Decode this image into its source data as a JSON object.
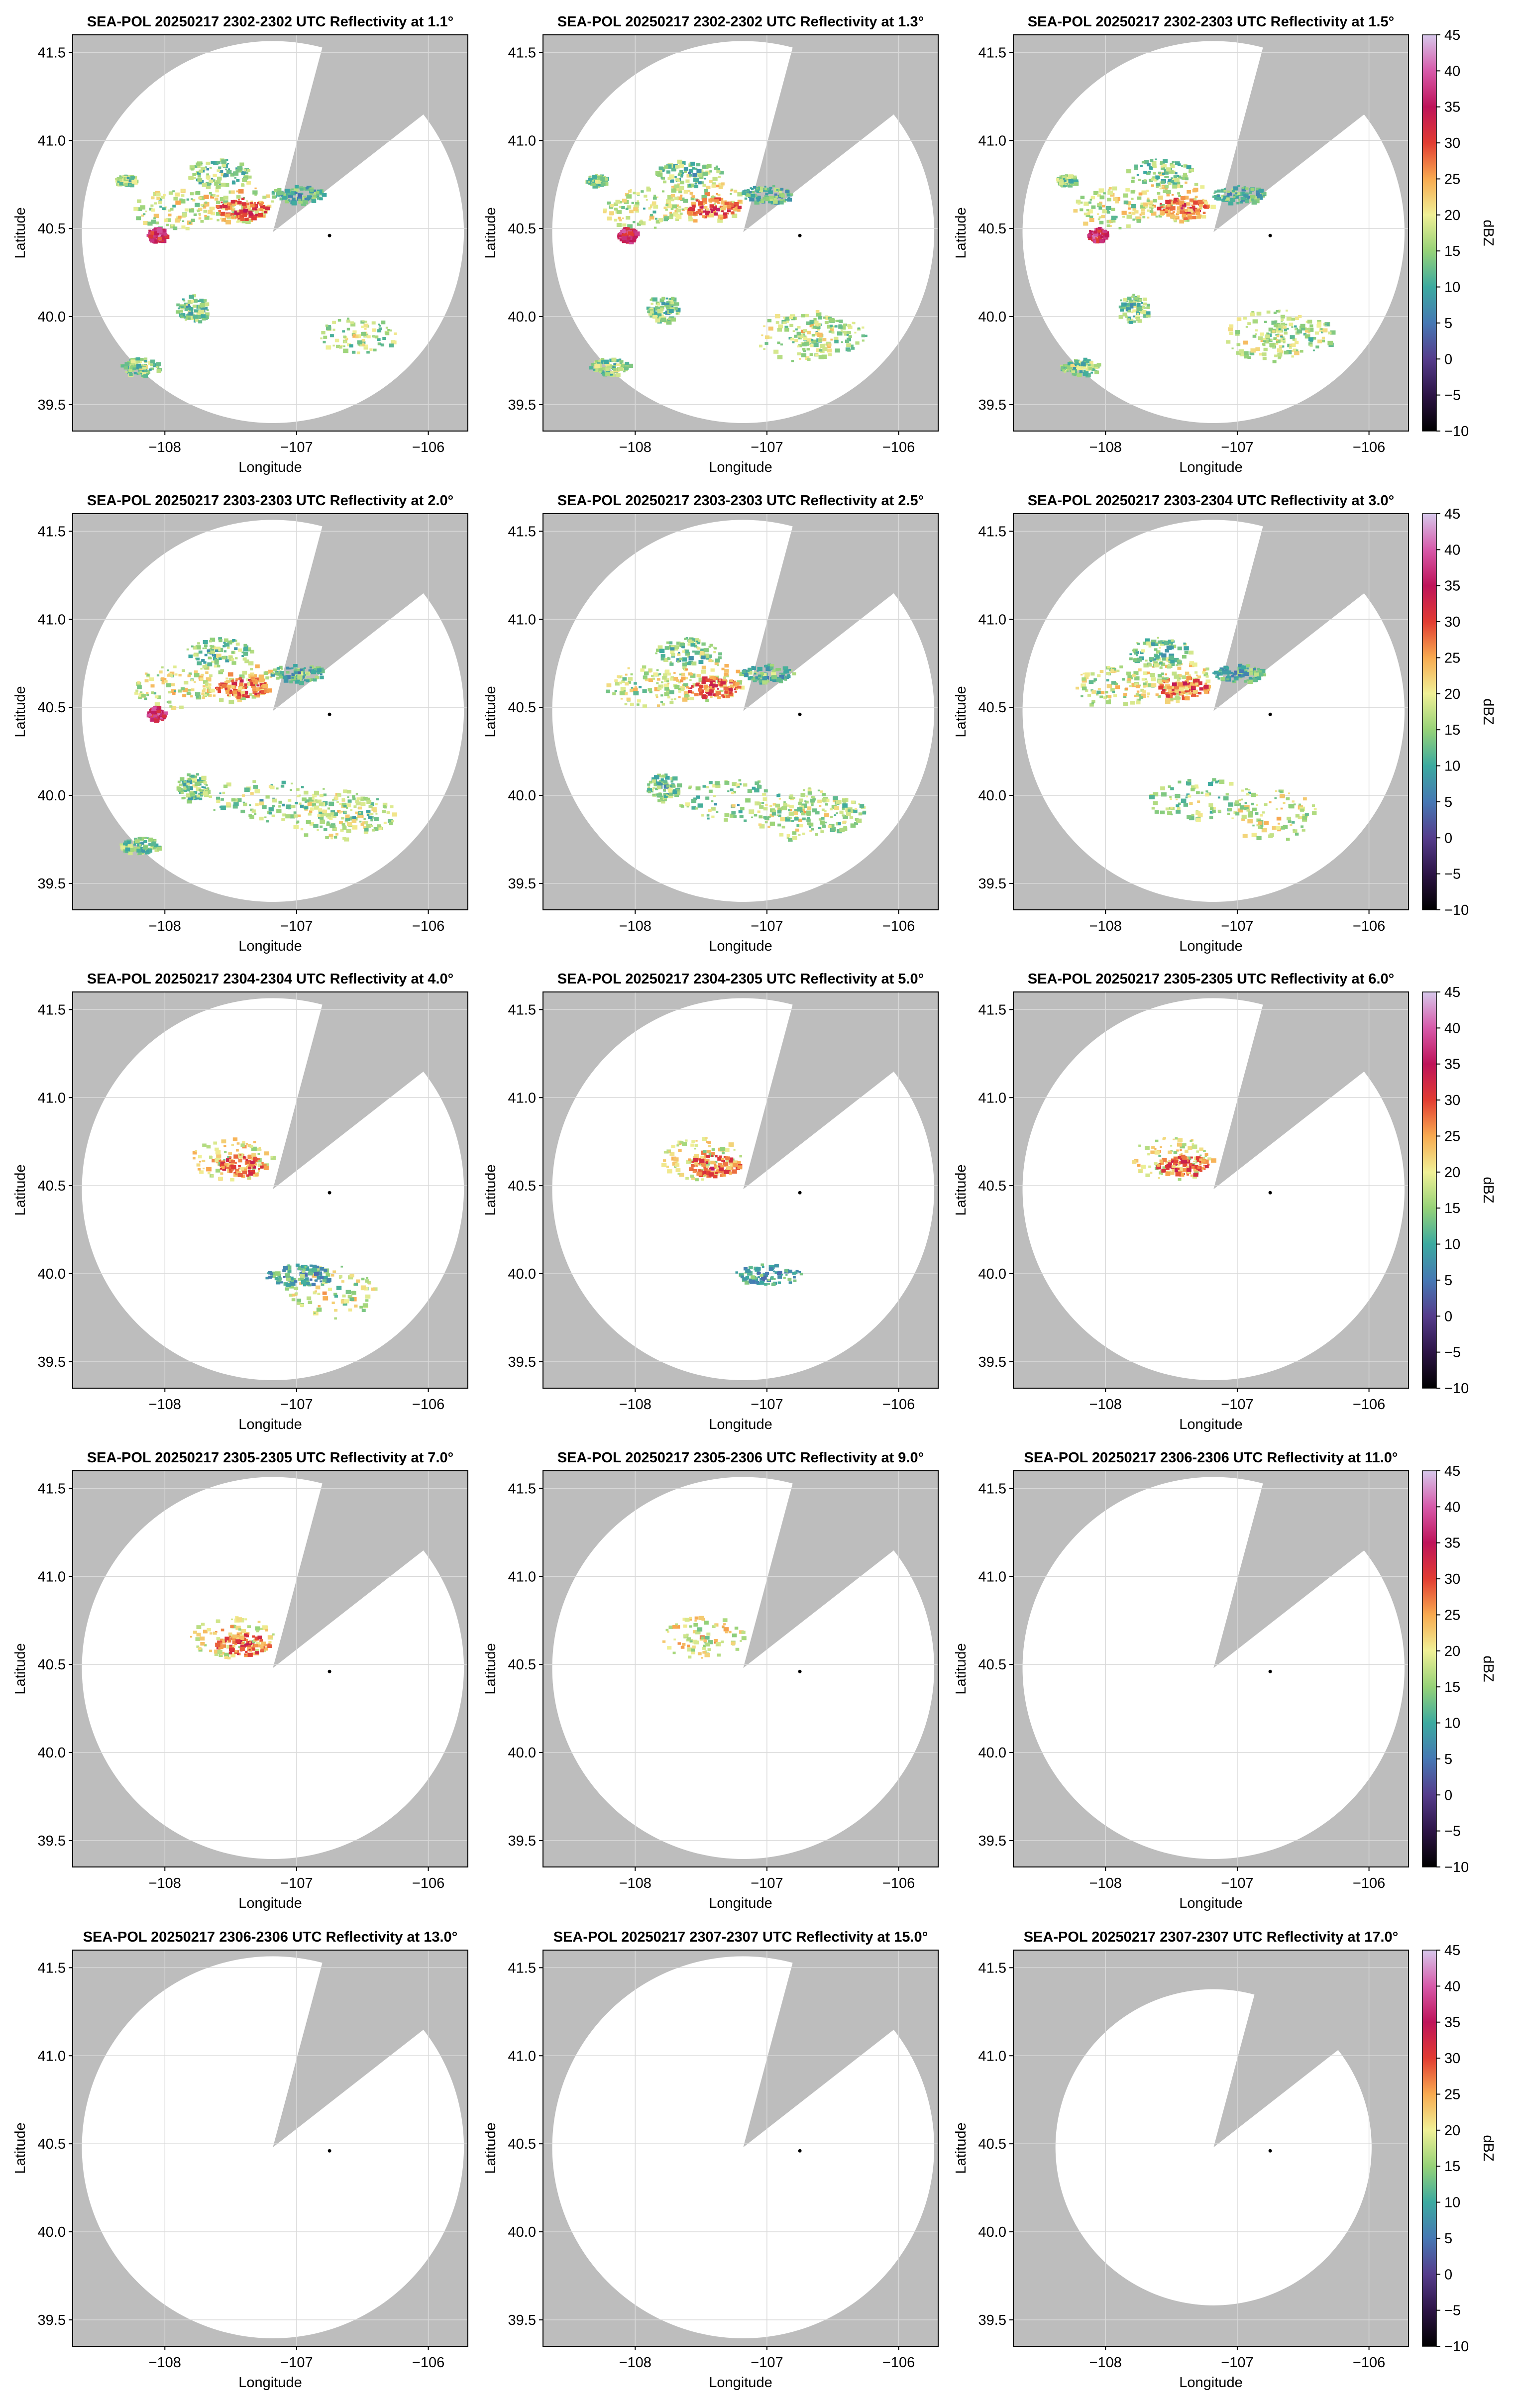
{
  "figure": {
    "xlabel": "Longitude",
    "ylabel": "Latitude",
    "xticks": [
      "−108",
      "−107",
      "−106"
    ],
    "yticks": [
      "39.5",
      "40.0",
      "40.5",
      "41.0",
      "41.5"
    ],
    "colorbar": {
      "label": "dBZ",
      "ticks": [
        "−10",
        "−5",
        "0",
        "5",
        "10",
        "15",
        "20",
        "25",
        "30",
        "35",
        "40",
        "45"
      ],
      "range": [
        -10,
        45
      ],
      "colormap": "Spectral-like (black → purple → blue → teal → green → yellow → orange → red → magenta → light purple)"
    },
    "background_color": "#bdbdbd",
    "radar_marker_color": "#000000"
  },
  "panels": [
    {
      "title": "SEA-POL 20250217 2302-2302 UTC Reflectivity at 1.1°"
    },
    {
      "title": "SEA-POL 20250217 2302-2302 UTC Reflectivity at 1.3°"
    },
    {
      "title": "SEA-POL 20250217 2302-2303 UTC Reflectivity at 1.5°"
    },
    {
      "title": "SEA-POL 20250217 2303-2303 UTC Reflectivity at 2.0°"
    },
    {
      "title": "SEA-POL 20250217 2303-2303 UTC Reflectivity at 2.5°"
    },
    {
      "title": "SEA-POL 20250217 2303-2304 UTC Reflectivity at 3.0°"
    },
    {
      "title": "SEA-POL 20250217 2304-2304 UTC Reflectivity at 4.0°"
    },
    {
      "title": "SEA-POL 20250217 2304-2305 UTC Reflectivity at 5.0°"
    },
    {
      "title": "SEA-POL 20250217 2305-2305 UTC Reflectivity at 6.0°"
    },
    {
      "title": "SEA-POL 20250217 2305-2305 UTC Reflectivity at 7.0°"
    },
    {
      "title": "SEA-POL 20250217 2305-2306 UTC Reflectivity at 9.0°"
    },
    {
      "title": "SEA-POL 20250217 2306-2306 UTC Reflectivity at 11.0°"
    },
    {
      "title": "SEA-POL 20250217 2306-2306 UTC Reflectivity at 13.0°"
    },
    {
      "title": "SEA-POL 20250217 2307-2307 UTC Reflectivity at 15.0°"
    },
    {
      "title": "SEA-POL 20250217 2307-2307 UTC Reflectivity at 17.0°"
    }
  ],
  "chart_data": {
    "type": "heatmap",
    "description_panels": 15,
    "xlim": [
      -108.7,
      -105.7
    ],
    "ylim": [
      39.35,
      41.6
    ],
    "grid": true,
    "radar_location": {
      "lon": -107.18,
      "lat": 40.48
    },
    "marker_location": {
      "lon": -106.75,
      "lat": 40.46
    },
    "blocked_sector_deg": [
      15,
      52
    ],
    "elevations_deg": [
      1.1,
      1.3,
      1.5,
      2.0,
      2.5,
      3.0,
      4.0,
      5.0,
      6.0,
      7.0,
      9.0,
      11.0,
      13.0,
      15.0,
      17.0
    ],
    "coverage_radius_deg": [
      1.45,
      1.45,
      1.45,
      1.45,
      1.45,
      1.45,
      1.45,
      1.45,
      1.45,
      1.45,
      1.45,
      1.45,
      1.45,
      1.45,
      1.2
    ],
    "cells": [
      {
        "panels": [
          0,
          1,
          2,
          3,
          4,
          5,
          6,
          7,
          8,
          9,
          10
        ],
        "lon": -107.5,
        "lat": 40.66,
        "rlon": 0.32,
        "rlat": 0.12,
        "dbz": 20
      },
      {
        "panels": [
          0,
          1,
          2,
          3,
          4,
          5,
          6,
          7,
          8,
          9
        ],
        "lon": -107.42,
        "lat": 40.62,
        "rlon": 0.2,
        "rlat": 0.06,
        "dbz": 28
      },
      {
        "panels": [
          0,
          1,
          2,
          3,
          4,
          5
        ],
        "lon": -107.6,
        "lat": 40.82,
        "rlon": 0.25,
        "rlat": 0.08,
        "dbz": 14
      },
      {
        "panels": [
          0,
          1,
          2,
          3,
          4,
          5
        ],
        "lon": -107.95,
        "lat": 40.62,
        "rlon": 0.3,
        "rlat": 0.12,
        "dbz": 18
      },
      {
        "panels": [
          0,
          1,
          2,
          3
        ],
        "lon": -108.07,
        "lat": 40.47,
        "rlon": 0.07,
        "rlat": 0.04,
        "dbz": 35
      },
      {
        "panels": [
          0,
          1,
          2
        ],
        "lon": -108.3,
        "lat": 40.78,
        "rlon": 0.08,
        "rlat": 0.03,
        "dbz": 15
      },
      {
        "panels": [
          0,
          1,
          2,
          3,
          4,
          5
        ],
        "lon": -107.0,
        "lat": 40.7,
        "rlon": 0.2,
        "rlat": 0.05,
        "dbz": 12
      },
      {
        "panels": [
          1,
          2,
          3,
          4,
          5,
          6
        ],
        "lon": -106.75,
        "lat": 39.9,
        "rlon": 0.35,
        "rlat": 0.15,
        "dbz": 18
      },
      {
        "panels": [
          0,
          1,
          2,
          3,
          4
        ],
        "lon": -106.55,
        "lat": 39.9,
        "rlon": 0.3,
        "rlat": 0.1,
        "dbz": 16
      },
      {
        "panels": [
          0,
          1,
          2,
          3
        ],
        "lon": -108.2,
        "lat": 39.72,
        "rlon": 0.15,
        "rlat": 0.05,
        "dbz": 15
      },
      {
        "panels": [
          0,
          1,
          2,
          3,
          4
        ],
        "lon": -107.8,
        "lat": 40.05,
        "rlon": 0.12,
        "rlat": 0.08,
        "dbz": 14
      },
      {
        "panels": [
          3,
          4,
          5
        ],
        "lon": -107.25,
        "lat": 39.98,
        "rlon": 0.45,
        "rlat": 0.12,
        "dbz": 15
      },
      {
        "panels": [
          6,
          7
        ],
        "lon": -107.0,
        "lat": 40.0,
        "rlon": 0.25,
        "rlat": 0.06,
        "dbz": 10
      }
    ]
  }
}
